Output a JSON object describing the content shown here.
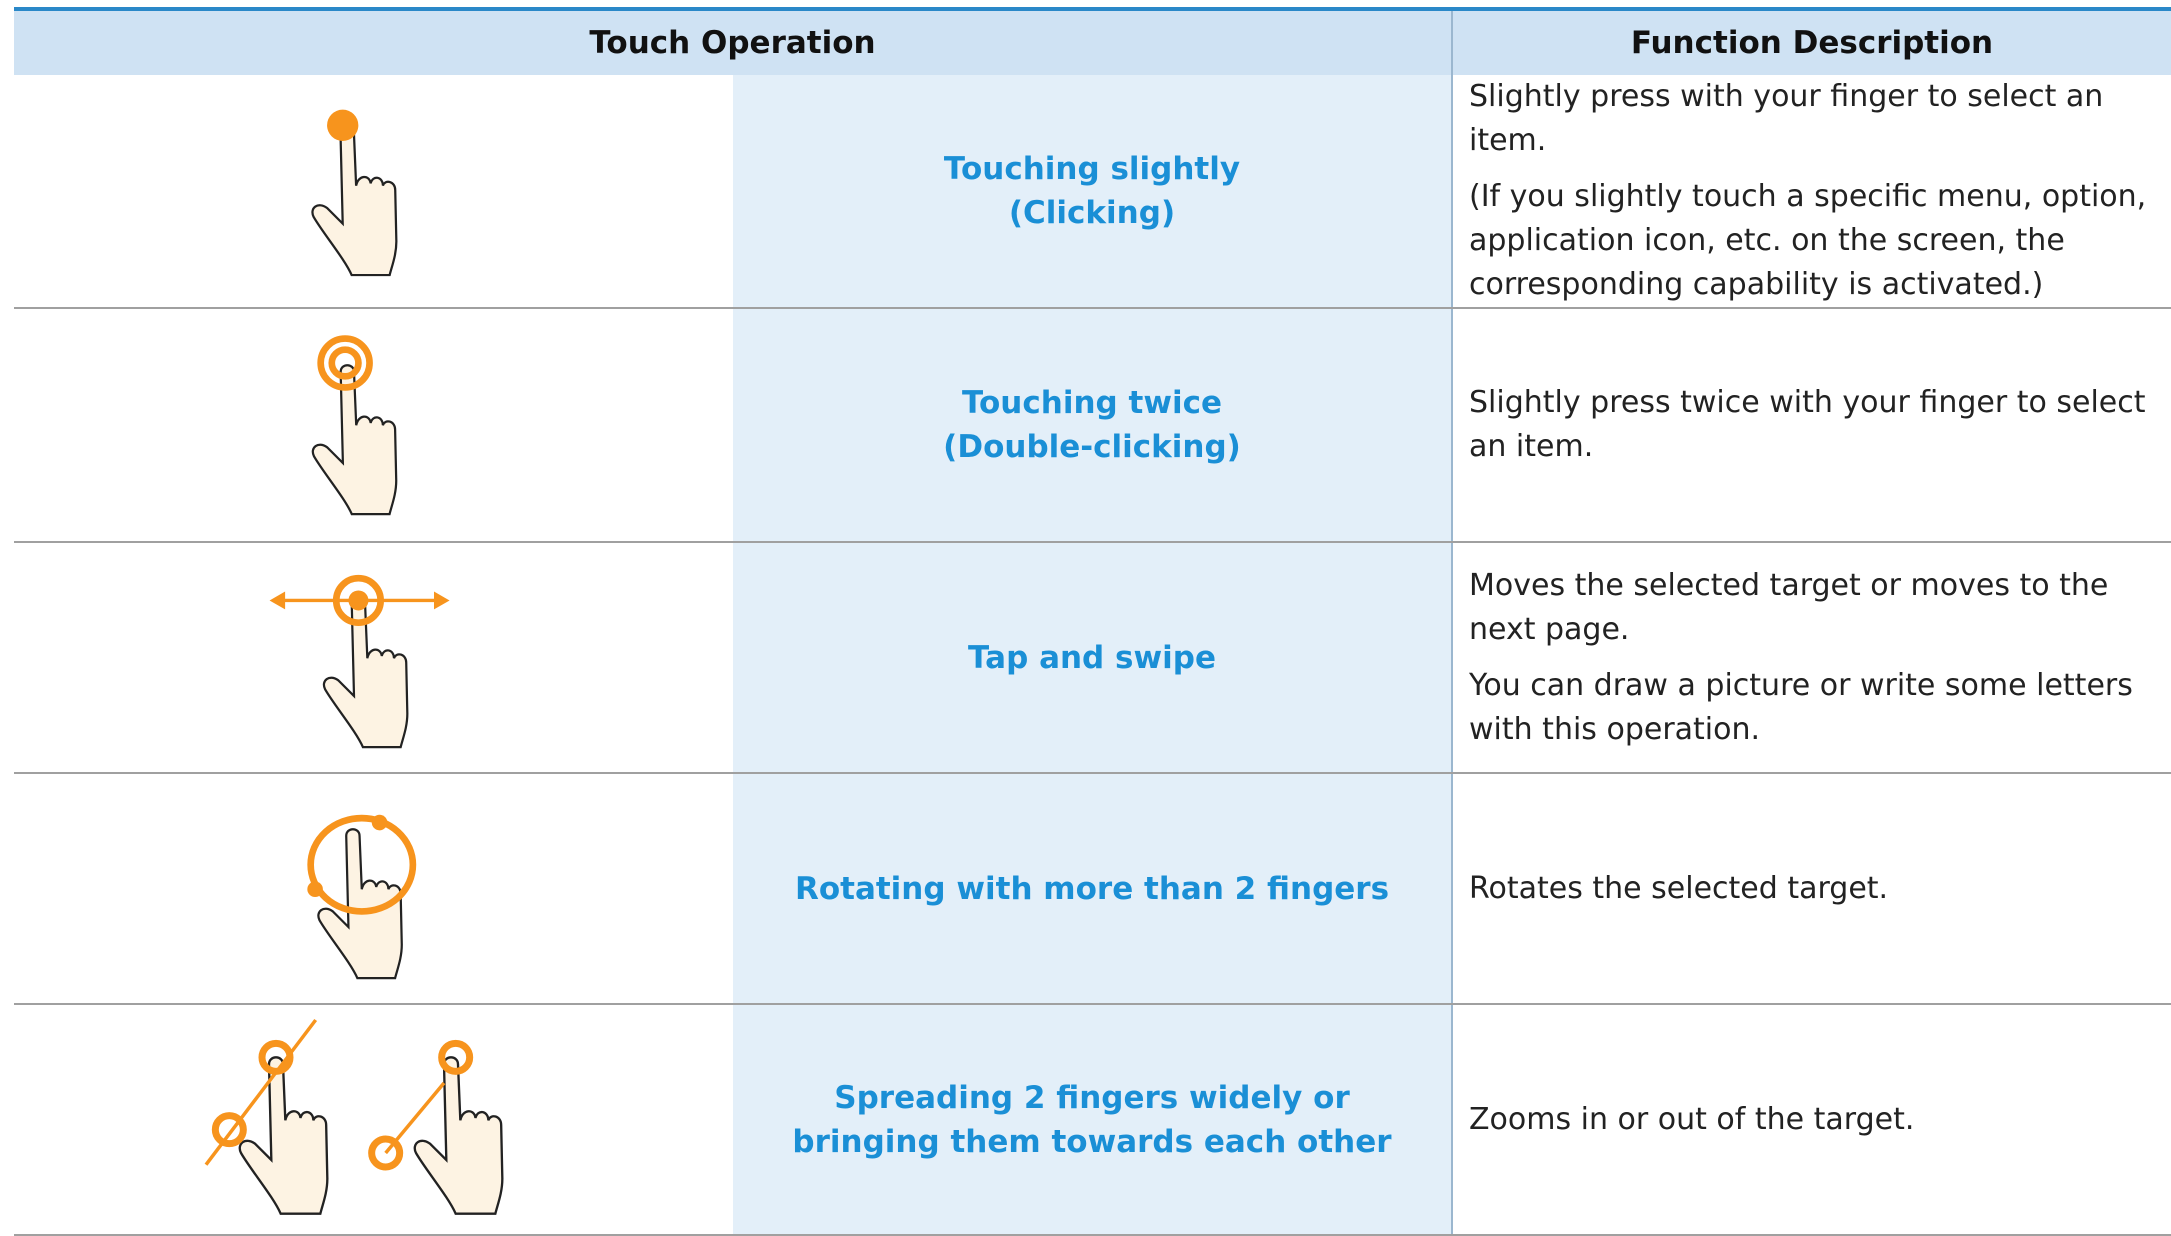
{
  "header": {
    "columns": [
      "Touch Operation",
      "Function Description"
    ]
  },
  "rows": [
    {
      "operation": [
        "Touching slightly",
        "(Clicking)"
      ],
      "description": [
        "Slightly press with your finger to select an item.",
        "(If you slightly touch a specific menu, option, application icon, etc. on the screen, the corresponding capability is activated.)"
      ]
    },
    {
      "operation": [
        "Touching twice",
        "(Double-clicking)"
      ],
      "description": [
        "Slightly press twice with your finger to select an item."
      ]
    },
    {
      "operation": [
        "Tap and swipe"
      ],
      "description": [
        "Moves the selected target or moves to the next page.",
        "You can draw a picture or write some letters with this operation."
      ]
    },
    {
      "operation": [
        "Rotating with more than 2 fingers"
      ],
      "description": [
        "Rotates the selected target."
      ]
    },
    {
      "operation": [
        "Spreading 2 fingers widely or",
        "bringing them towards each other"
      ],
      "description": [
        "Zooms in or out of the target."
      ]
    }
  ]
}
